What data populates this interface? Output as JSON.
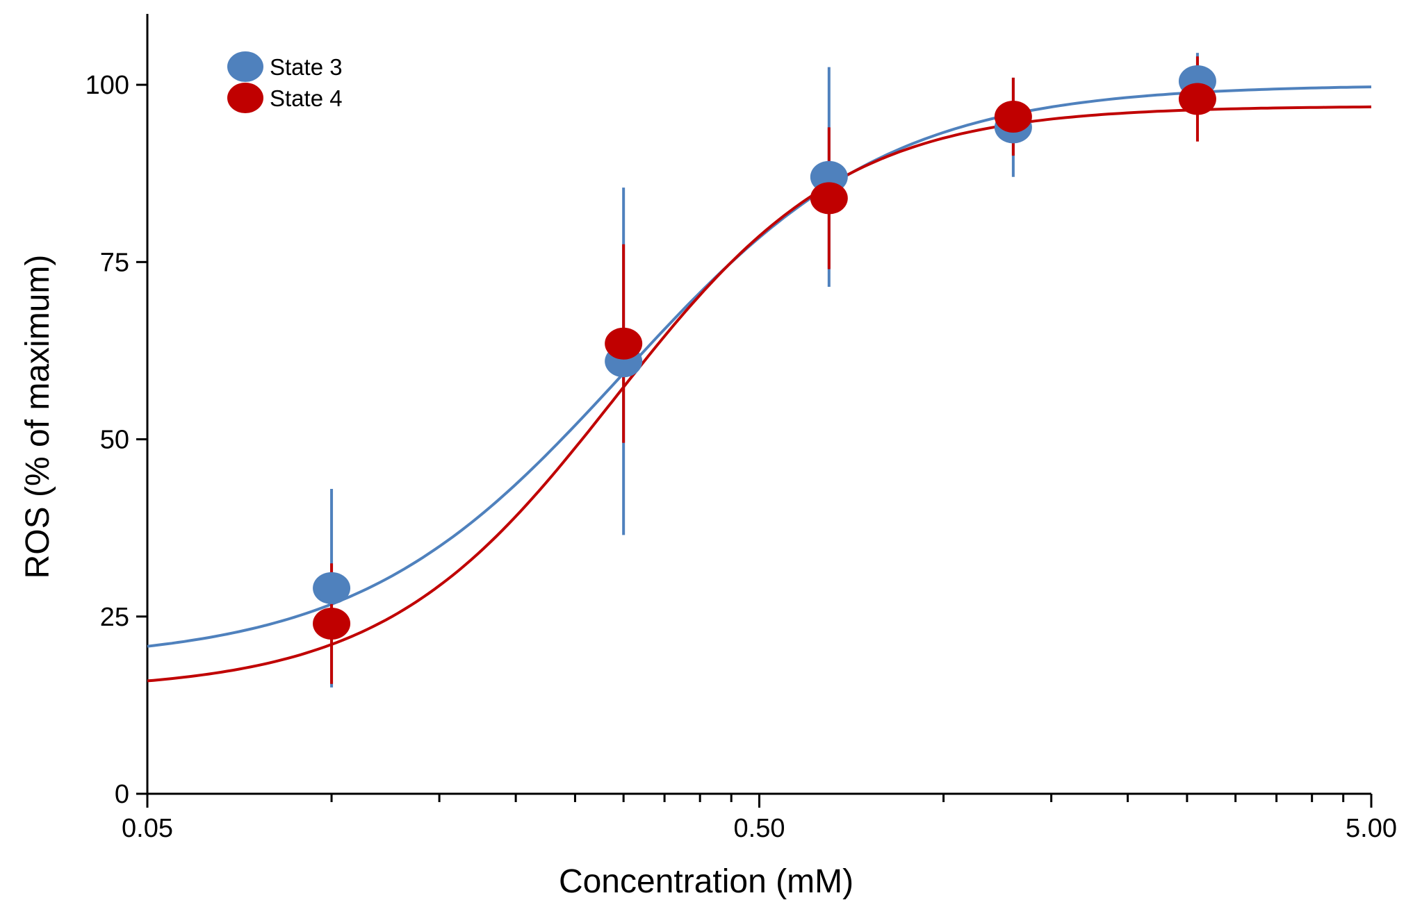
{
  "chart_data": {
    "type": "scatter",
    "title": "",
    "xlabel": "Concentration (mM)",
    "ylabel": "ROS (% of maximum)",
    "xscale": "log",
    "xlim": [
      0.05,
      5.0
    ],
    "ylim": [
      0,
      110
    ],
    "x_ticks": [
      0.05,
      0.5,
      5.0
    ],
    "x_tick_labels": [
      "0.05",
      "0.50",
      "5.00"
    ],
    "y_ticks": [
      0,
      25,
      50,
      75,
      100
    ],
    "y_tick_labels": [
      "0",
      "25",
      "50",
      "75",
      "100"
    ],
    "grid": false,
    "legend_position": "top-left",
    "series": [
      {
        "name": "State 3",
        "color": "#4f81bd",
        "x": [
          0.1,
          0.3,
          0.65,
          1.3,
          2.6
        ],
        "y": [
          29,
          61,
          87,
          94,
          100.5
        ],
        "yerr": [
          14,
          24.5,
          15.5,
          7,
          4
        ],
        "fit": {
          "model": "4PL",
          "bottom": 18.6,
          "top": 100.0,
          "ec50": 0.3,
          "hill": 2.0
        }
      },
      {
        "name": "State 4",
        "color": "#c00000",
        "x": [
          0.1,
          0.3,
          0.65,
          1.3,
          2.6
        ],
        "y": [
          24,
          63.5,
          84,
          95.5,
          98
        ],
        "yerr": [
          8.5,
          14,
          10,
          5.5,
          6
        ],
        "fit": {
          "model": "4PL",
          "bottom": 14.5,
          "top": 97.0,
          "ec50": 0.29,
          "hill": 2.3
        }
      }
    ]
  }
}
